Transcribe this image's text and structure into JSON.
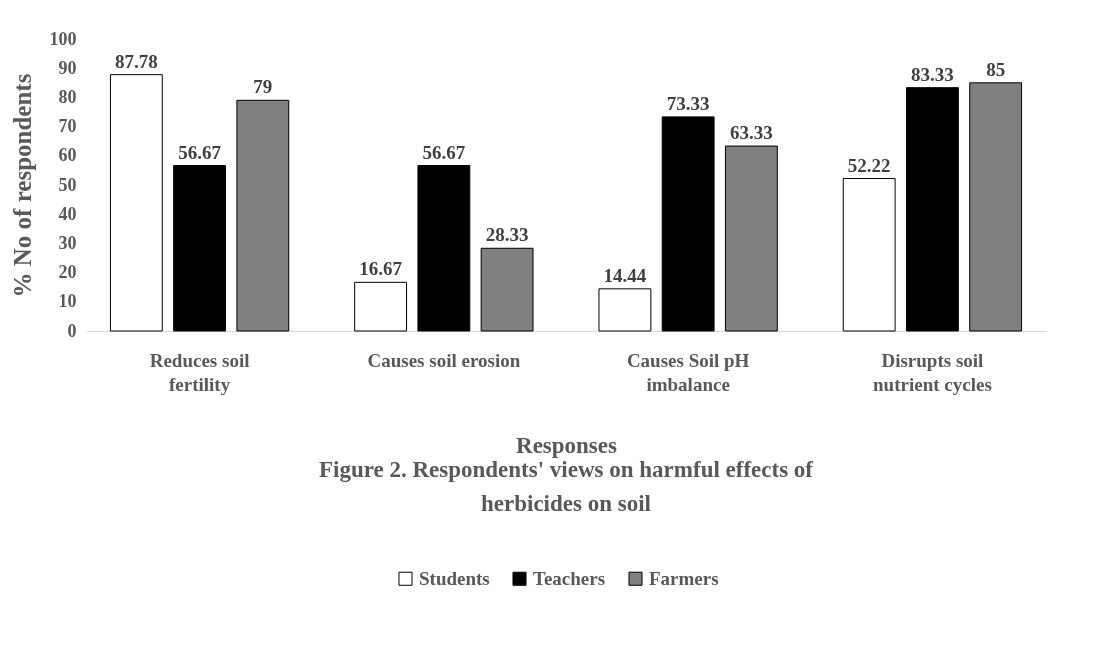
{
  "chart_data": {
    "type": "bar",
    "title": "Figure 2. Respondents' views on harmful effects of herbicides on soil",
    "xlabel": "Responses",
    "ylabel": "% No of respondents",
    "categories": [
      "Reduces soil fertility",
      "Causes soil erosion",
      "Causes Soil pH imbalance",
      "Disrupts soil nutrient cycles"
    ],
    "series": [
      {
        "name": "Students",
        "color": "#ffffff",
        "values": [
          87.78,
          16.67,
          14.44,
          52.22
        ]
      },
      {
        "name": "Teachers",
        "color": "#000000",
        "values": [
          56.67,
          56.67,
          73.33,
          83.33
        ]
      },
      {
        "name": "Farmers",
        "color": "#808080",
        "values": [
          79,
          28.33,
          63.33,
          85
        ]
      }
    ],
    "ylim": [
      0,
      100
    ],
    "yticks": [
      0,
      10,
      20,
      30,
      40,
      50,
      60,
      70,
      80,
      90,
      100
    ],
    "grid": false,
    "legend": "bottom",
    "data_labels": true
  }
}
